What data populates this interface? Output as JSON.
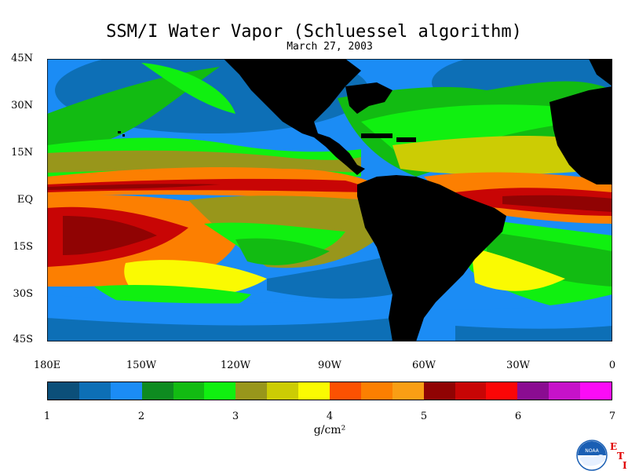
{
  "title": "SSM/I Water Vapor (Schluessel algorithm)",
  "subtitle": "March 27, 2003",
  "map": {
    "lat_labels": [
      "45N",
      "30N",
      "15N",
      "EQ",
      "15S",
      "30S",
      "45S"
    ],
    "lon_labels": [
      "180E",
      "150W",
      "120W",
      "90W",
      "60W",
      "30W",
      "0"
    ],
    "land_color": "#000000"
  },
  "colorbar": {
    "ticks": [
      "1",
      "2",
      "3",
      "4",
      "5",
      "6",
      "7"
    ],
    "unit": "g/cm²",
    "colors": [
      "#0c4f79",
      "#0d6fb6",
      "#1b8cf5",
      "#0e8b20",
      "#12bb12",
      "#10f010",
      "#98961b",
      "#cccc04",
      "#fafa02",
      "#fc5102",
      "#fc7f01",
      "#f99e14",
      "#900303",
      "#c80505",
      "#fb0606",
      "#8a0c91",
      "#c612c9",
      "#fb0cf6"
    ]
  },
  "logo": {
    "label": "NOAA",
    "letters": [
      "E",
      "T",
      "I"
    ],
    "brand_color": "#1a5fb4"
  }
}
